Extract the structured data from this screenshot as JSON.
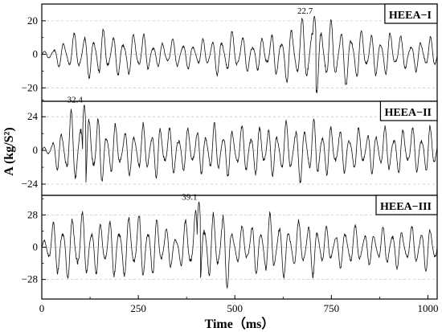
{
  "chart_data": {
    "type": "line",
    "xlabel": "Time（ms）",
    "ylabel": "A (kg/S²)",
    "xlim": [
      0,
      1024
    ],
    "x_ticks": [
      0,
      250,
      500,
      750,
      1000
    ],
    "grid": true,
    "panels": [
      {
        "label": "HEEA−I",
        "ylim": [
          -28,
          30
        ],
        "y_ticks": [
          20,
          0,
          -20
        ],
        "peak": {
          "x": 706,
          "y": 22.7,
          "label": "22.7"
        },
        "envelope": {
          "x": [
            0,
            20,
            50,
            100,
            150,
            200,
            250,
            300,
            350,
            400,
            450,
            500,
            550,
            600,
            650,
            700,
            750,
            800,
            850,
            900,
            950,
            1000,
            1024
          ],
          "amplitude": [
            1,
            3,
            8,
            13,
            14,
            12,
            13,
            7,
            9,
            7,
            11,
            13,
            9,
            12,
            18,
            21,
            18,
            17,
            12,
            13,
            9,
            10,
            8
          ]
        },
        "frequency_hz": 39
      },
      {
        "label": "HEEA−II",
        "ylim": [
          -32,
          35
        ],
        "y_ticks": [
          24,
          0,
          -24
        ],
        "peak": {
          "x": 110,
          "y": 32.4,
          "label": "32.4"
        },
        "envelope": {
          "x": [
            0,
            20,
            50,
            80,
            110,
            150,
            200,
            250,
            300,
            350,
            400,
            450,
            500,
            550,
            600,
            650,
            700,
            750,
            800,
            850,
            900,
            950,
            1000,
            1024
          ],
          "amplitude": [
            1,
            5,
            17,
            27,
            29,
            23,
            16,
            17,
            18,
            16,
            15,
            18,
            17,
            17,
            17,
            20,
            21,
            17,
            15,
            15,
            16,
            16,
            17,
            15
          ]
        },
        "frequency_hz": 43
      },
      {
        "label": "HEEA−III",
        "ylim": [
          -45,
          45
        ],
        "y_ticks": [
          28,
          0,
          -28
        ],
        "peak": {
          "x": 407,
          "y": 39.1,
          "label": "39.1"
        },
        "envelope": {
          "x": [
            0,
            20,
            50,
            100,
            150,
            200,
            250,
            300,
            350,
            400,
            450,
            475,
            500,
            550,
            600,
            650,
            700,
            750,
            800,
            850,
            900,
            950,
            1000,
            1024
          ],
          "amplitude": [
            2,
            20,
            26,
            30,
            22,
            26,
            29,
            24,
            13,
            36,
            26,
            38,
            15,
            22,
            28,
            20,
            24,
            14,
            19,
            14,
            18,
            16,
            20,
            18
          ]
        },
        "frequency_hz": 41
      }
    ]
  }
}
